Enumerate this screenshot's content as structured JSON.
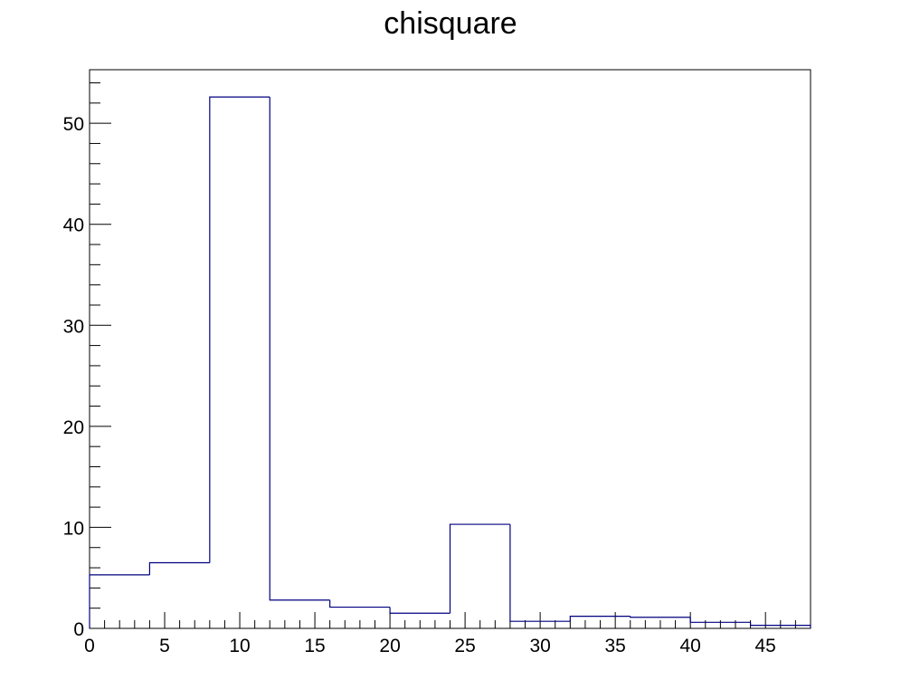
{
  "chart_data": {
    "type": "bar",
    "title": "chisquare",
    "xlabel": "",
    "ylabel": "",
    "xlim": [
      0,
      48
    ],
    "ylim": [
      0,
      55.3
    ],
    "bin_edges": [
      0,
      4,
      8,
      12,
      16,
      20,
      24,
      28,
      32,
      36,
      40,
      44,
      48
    ],
    "values": [
      5.3,
      6.5,
      52.6,
      2.8,
      2.1,
      1.5,
      10.3,
      0.7,
      1.2,
      1.1,
      0.6,
      0.3
    ],
    "x_ticks": [
      0,
      5,
      10,
      15,
      20,
      25,
      30,
      35,
      40,
      45
    ],
    "y_ticks": [
      0,
      10,
      20,
      30,
      40,
      50
    ],
    "grid": false,
    "line_color": "#000080",
    "histogram_style": "step"
  }
}
